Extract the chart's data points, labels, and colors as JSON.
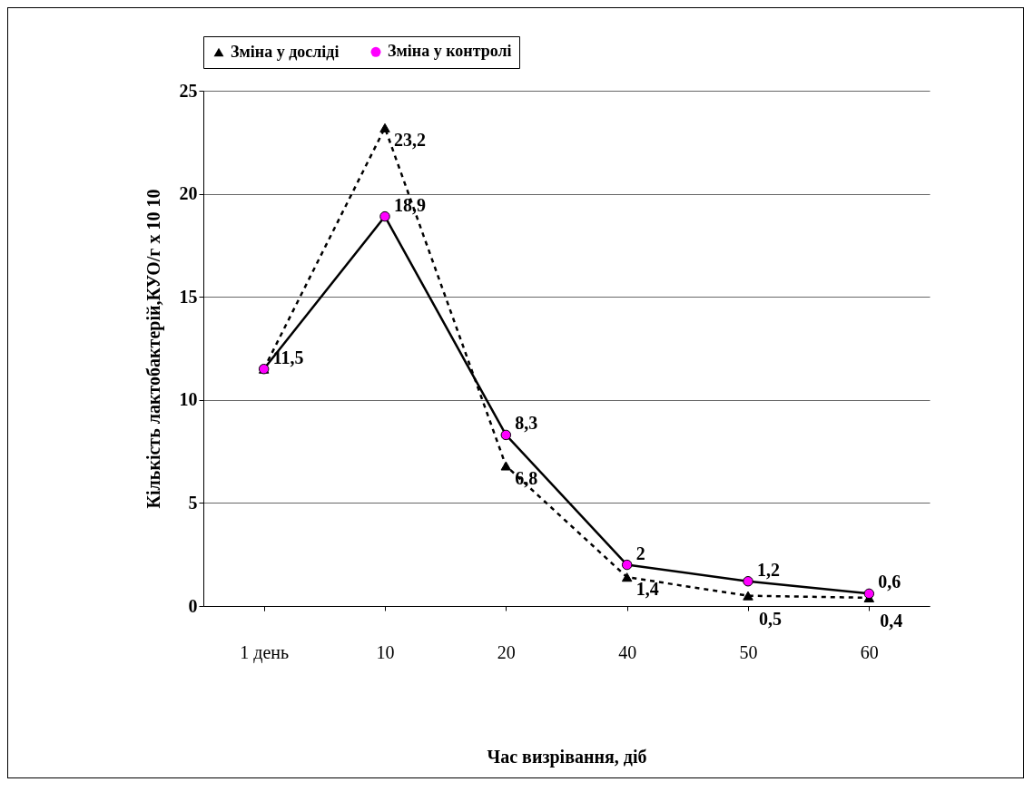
{
  "chart_data": {
    "type": "line",
    "xlabel": "Час визрівання, діб",
    "ylabel": "Кількість лактобактерій,КУО/г х 10 10",
    "categories": [
      "1 день",
      "10",
      "20",
      "40",
      "50",
      "60"
    ],
    "series": [
      {
        "name": "Зміна у досліді",
        "color": "#000000",
        "marker": "triangle",
        "line_style": "dashed",
        "values": [
          11.5,
          23.2,
          6.8,
          1.4,
          0.5,
          0.4
        ],
        "value_labels": [
          null,
          "23,2",
          "6,8",
          "1,4",
          "0,5",
          "0,4"
        ]
      },
      {
        "name": "Зміна у контролі",
        "color": "#ff00ff",
        "marker": "circle",
        "line_style": "solid",
        "values": [
          11.5,
          18.9,
          8.3,
          2,
          1.2,
          0.6
        ],
        "value_labels": [
          "11,5",
          "18,9",
          "8,3",
          "2",
          "1,2",
          "0,6"
        ]
      }
    ],
    "ylim": [
      0,
      25
    ],
    "yticks": [
      0,
      5,
      10,
      15,
      20,
      25
    ],
    "grid": "y",
    "legend": "top"
  }
}
